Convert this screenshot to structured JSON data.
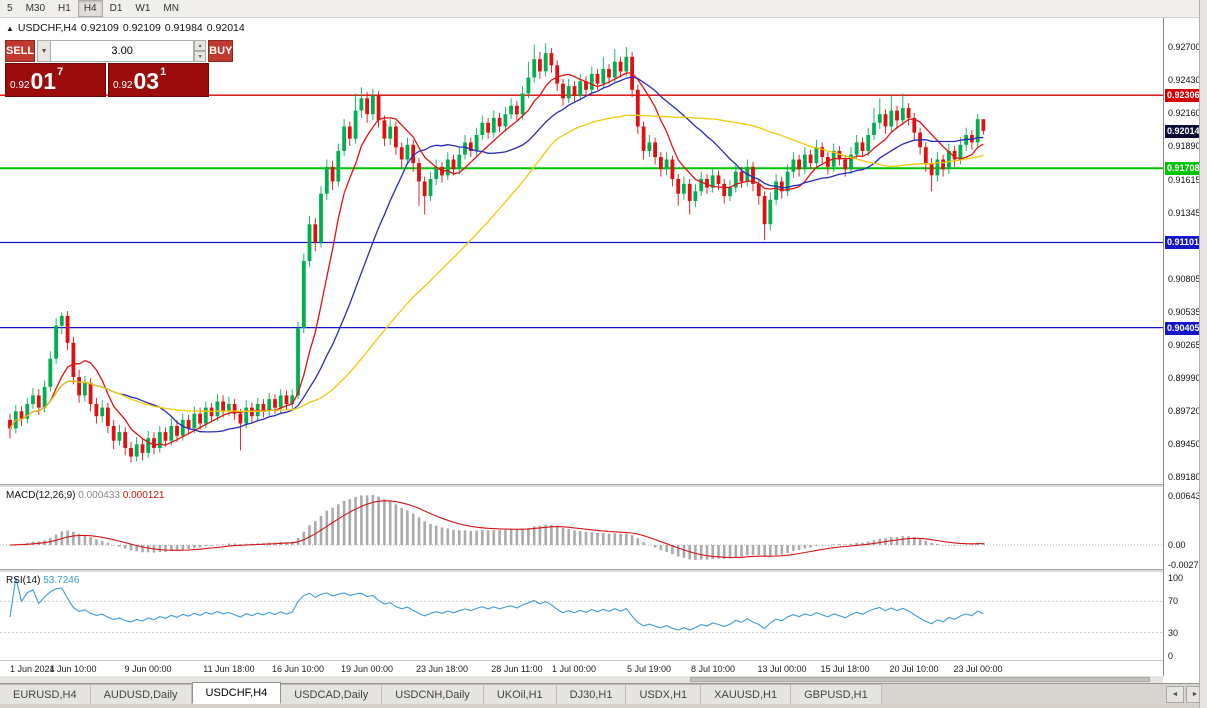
{
  "toolbar": {
    "timeframes": [
      {
        "label": "5",
        "active": false
      },
      {
        "label": "M30",
        "active": false
      },
      {
        "label": "H1",
        "active": false
      },
      {
        "label": "H4",
        "active": true
      },
      {
        "label": "D1",
        "active": false
      },
      {
        "label": "W1",
        "active": false
      },
      {
        "label": "MN",
        "active": false
      }
    ]
  },
  "chart": {
    "symbol_timeframe": "USDCHF,H4",
    "open": "0.92109",
    "high": "0.92109",
    "low": "0.91984",
    "close": "0.92014",
    "one_click": {
      "sell_label": "SELL",
      "buy_label": "BUY",
      "lot": "3.00",
      "bid": {
        "prefix": "0.92",
        "big": "01",
        "sup": "7"
      },
      "ask": {
        "prefix": "0.92",
        "big": "03",
        "sup": "1"
      }
    },
    "colors": {
      "bull": "#00B050",
      "bear": "#E01010",
      "background": "#ffffff"
    },
    "ma_lines": [
      {
        "period": 8,
        "color": "#E11212"
      },
      {
        "period": 20,
        "color": "#2A2ABB"
      },
      {
        "period": 45,
        "color": "#EFCA08"
      }
    ],
    "hlines": [
      {
        "label": "0.92306",
        "value": 0.92306,
        "color": "#D40000",
        "width": 1.3
      },
      {
        "label": "0.91708",
        "value": 0.91708,
        "color": "#00C400",
        "width": 2
      },
      {
        "label": "0.91101",
        "value": 0.91101,
        "color": "#1414C8",
        "width": 1.3
      },
      {
        "label": "0.90405",
        "value": 0.90405,
        "color": "#1414C8",
        "width": 1.3
      }
    ],
    "current_price": {
      "label": "0.92014",
      "value": 0.92014,
      "badge_color": "#0D0D38"
    },
    "price_axis": [
      "0.92700",
      "0.92430",
      "0.92160",
      "0.91890",
      "0.91615",
      "0.91345",
      "0.91075",
      "0.90805",
      "0.90535",
      "0.90265",
      "0.89990",
      "0.89720",
      "0.89450",
      "0.89180"
    ],
    "time_axis": [
      {
        "label": "1 Jun 2021",
        "i": 0
      },
      {
        "label": "4 Jun 10:00",
        "i": 11
      },
      {
        "label": "9 Jun 00:00",
        "i": 24
      },
      {
        "label": "11 Jun 18:00",
        "i": 38
      },
      {
        "label": "16 Jun 10:00",
        "i": 50
      },
      {
        "label": "19 Jun 00:00",
        "i": 62
      },
      {
        "label": "23 Jun 18:00",
        "i": 75
      },
      {
        "label": "28 Jun 11:00",
        "i": 88
      },
      {
        "label": "1 Jul 00:00",
        "i": 98
      },
      {
        "label": "5 Jul 19:00",
        "i": 111
      },
      {
        "label": "8 Jul 10:00",
        "i": 122
      },
      {
        "label": "13 Jul 00:00",
        "i": 134
      },
      {
        "label": "15 Jul 18:00",
        "i": 145
      },
      {
        "label": "20 Jul 10:00",
        "i": 157
      },
      {
        "label": "23 Jul 00:00",
        "i": 168
      }
    ],
    "candles": [
      [
        0.8965,
        0.897,
        0.895,
        0.8958
      ],
      [
        0.8958,
        0.8977,
        0.8954,
        0.8972
      ],
      [
        0.8972,
        0.8976,
        0.896,
        0.8966
      ],
      [
        0.8966,
        0.8983,
        0.8962,
        0.8978
      ],
      [
        0.8978,
        0.8991,
        0.8974,
        0.8985
      ],
      [
        0.8985,
        0.899,
        0.8969,
        0.8975
      ],
      [
        0.8975,
        0.8997,
        0.8971,
        0.8992
      ],
      [
        0.8992,
        0.9021,
        0.8988,
        0.9015
      ],
      [
        0.9015,
        0.9048,
        0.9011,
        0.9042
      ],
      [
        0.9042,
        0.9053,
        0.9035,
        0.905
      ],
      [
        0.905,
        0.9054,
        0.9022,
        0.9028
      ],
      [
        0.9028,
        0.9033,
        0.8994,
        0.9
      ],
      [
        0.9,
        0.9006,
        0.8979,
        0.8985
      ],
      [
        0.8985,
        0.9001,
        0.898,
        0.8995
      ],
      [
        0.8995,
        0.8999,
        0.8972,
        0.8978
      ],
      [
        0.8978,
        0.8983,
        0.8962,
        0.8968
      ],
      [
        0.8968,
        0.8981,
        0.8963,
        0.8975
      ],
      [
        0.8975,
        0.8979,
        0.8954,
        0.896
      ],
      [
        0.896,
        0.8965,
        0.8941,
        0.8948
      ],
      [
        0.8948,
        0.8961,
        0.8944,
        0.8955
      ],
      [
        0.8955,
        0.8959,
        0.8936,
        0.8942
      ],
      [
        0.8942,
        0.8947,
        0.893,
        0.8935
      ],
      [
        0.8935,
        0.8951,
        0.8931,
        0.8945
      ],
      [
        0.8945,
        0.895,
        0.8932,
        0.8938
      ],
      [
        0.8938,
        0.8956,
        0.8934,
        0.895
      ],
      [
        0.895,
        0.8955,
        0.8937,
        0.8942
      ],
      [
        0.8942,
        0.896,
        0.8938,
        0.8955
      ],
      [
        0.8955,
        0.8959,
        0.8943,
        0.8948
      ],
      [
        0.8948,
        0.8966,
        0.8944,
        0.896
      ],
      [
        0.896,
        0.8965,
        0.8947,
        0.8952
      ],
      [
        0.8952,
        0.897,
        0.8948,
        0.8965
      ],
      [
        0.8965,
        0.8969,
        0.8953,
        0.8958
      ],
      [
        0.8958,
        0.8976,
        0.8954,
        0.897
      ],
      [
        0.897,
        0.8975,
        0.8957,
        0.8962
      ],
      [
        0.8962,
        0.898,
        0.8958,
        0.8975
      ],
      [
        0.8975,
        0.8979,
        0.8963,
        0.8968
      ],
      [
        0.8968,
        0.8986,
        0.8964,
        0.898
      ],
      [
        0.898,
        0.8985,
        0.8967,
        0.8972
      ],
      [
        0.8972,
        0.8984,
        0.8968,
        0.8978
      ],
      [
        0.8978,
        0.8982,
        0.8965,
        0.897
      ],
      [
        0.897,
        0.8974,
        0.894,
        0.8962
      ],
      [
        0.8962,
        0.8981,
        0.8958,
        0.8975
      ],
      [
        0.8975,
        0.8979,
        0.8963,
        0.8968
      ],
      [
        0.8968,
        0.8983,
        0.8964,
        0.8978
      ],
      [
        0.8978,
        0.8982,
        0.8967,
        0.8972
      ],
      [
        0.8972,
        0.8987,
        0.8968,
        0.8982
      ],
      [
        0.8982,
        0.8986,
        0.897,
        0.8975
      ],
      [
        0.8975,
        0.899,
        0.8971,
        0.8985
      ],
      [
        0.8985,
        0.8989,
        0.8973,
        0.8978
      ],
      [
        0.8978,
        0.899,
        0.8974,
        0.8985
      ],
      [
        0.8985,
        0.9045,
        0.8982,
        0.904
      ],
      [
        0.904,
        0.9101,
        0.9036,
        0.9095
      ],
      [
        0.9095,
        0.9132,
        0.909,
        0.9125
      ],
      [
        0.9125,
        0.913,
        0.9103,
        0.911
      ],
      [
        0.911,
        0.9156,
        0.9106,
        0.915
      ],
      [
        0.915,
        0.9178,
        0.9145,
        0.9172
      ],
      [
        0.9172,
        0.9177,
        0.9153,
        0.916
      ],
      [
        0.916,
        0.9191,
        0.9156,
        0.9185
      ],
      [
        0.9185,
        0.9211,
        0.9181,
        0.9205
      ],
      [
        0.9205,
        0.9209,
        0.9189,
        0.9195
      ],
      [
        0.9195,
        0.9232,
        0.9191,
        0.9218
      ],
      [
        0.9218,
        0.9237,
        0.9212,
        0.9228
      ],
      [
        0.9228,
        0.9233,
        0.9208,
        0.9215
      ],
      [
        0.9215,
        0.9236,
        0.921,
        0.923
      ],
      [
        0.923,
        0.9234,
        0.9204,
        0.921
      ],
      [
        0.921,
        0.9214,
        0.9189,
        0.9195
      ],
      [
        0.9195,
        0.9211,
        0.919,
        0.9205
      ],
      [
        0.9205,
        0.9209,
        0.9182,
        0.9188
      ],
      [
        0.9188,
        0.9192,
        0.9171,
        0.9178
      ],
      [
        0.9178,
        0.9196,
        0.9174,
        0.919
      ],
      [
        0.919,
        0.9194,
        0.9168,
        0.9175
      ],
      [
        0.9175,
        0.9179,
        0.914,
        0.916
      ],
      [
        0.916,
        0.9164,
        0.9133,
        0.9148
      ],
      [
        0.9148,
        0.9168,
        0.9144,
        0.9162
      ],
      [
        0.9162,
        0.9178,
        0.9157,
        0.9172
      ],
      [
        0.9172,
        0.9176,
        0.9159,
        0.9165
      ],
      [
        0.9165,
        0.9184,
        0.9161,
        0.9178
      ],
      [
        0.9178,
        0.9182,
        0.9165,
        0.917
      ],
      [
        0.917,
        0.9188,
        0.9166,
        0.9182
      ],
      [
        0.9182,
        0.9198,
        0.9178,
        0.9192
      ],
      [
        0.9192,
        0.9196,
        0.918,
        0.9185
      ],
      [
        0.9185,
        0.9204,
        0.9181,
        0.9198
      ],
      [
        0.9198,
        0.9214,
        0.9194,
        0.9208
      ],
      [
        0.9208,
        0.9212,
        0.9195,
        0.92
      ],
      [
        0.92,
        0.9218,
        0.9196,
        0.9212
      ],
      [
        0.9212,
        0.9216,
        0.92,
        0.9205
      ],
      [
        0.9205,
        0.9221,
        0.9201,
        0.9215
      ],
      [
        0.9215,
        0.9228,
        0.9211,
        0.9222
      ],
      [
        0.9222,
        0.9226,
        0.921,
        0.9215
      ],
      [
        0.9215,
        0.9238,
        0.9211,
        0.9232
      ],
      [
        0.9232,
        0.9258,
        0.9228,
        0.9245
      ],
      [
        0.9245,
        0.9272,
        0.9241,
        0.926
      ],
      [
        0.926,
        0.9266,
        0.9244,
        0.925
      ],
      [
        0.925,
        0.9273,
        0.9246,
        0.9265
      ],
      [
        0.9265,
        0.9269,
        0.9249,
        0.9255
      ],
      [
        0.9255,
        0.9259,
        0.9234,
        0.924
      ],
      [
        0.924,
        0.9244,
        0.9222,
        0.9228
      ],
      [
        0.9228,
        0.9244,
        0.9224,
        0.9238
      ],
      [
        0.9238,
        0.9242,
        0.9225,
        0.923
      ],
      [
        0.923,
        0.9248,
        0.9226,
        0.9242
      ],
      [
        0.9242,
        0.9246,
        0.923,
        0.9235
      ],
      [
        0.9235,
        0.9254,
        0.9231,
        0.9248
      ],
      [
        0.9248,
        0.9252,
        0.9235,
        0.924
      ],
      [
        0.924,
        0.9262,
        0.9236,
        0.9252
      ],
      [
        0.9252,
        0.9256,
        0.924,
        0.9245
      ],
      [
        0.9245,
        0.9268,
        0.9241,
        0.9258
      ],
      [
        0.9258,
        0.9262,
        0.9245,
        0.925
      ],
      [
        0.925,
        0.927,
        0.9246,
        0.9262
      ],
      [
        0.9262,
        0.9266,
        0.9229,
        0.9235
      ],
      [
        0.9235,
        0.9239,
        0.9199,
        0.9205
      ],
      [
        0.9205,
        0.9209,
        0.9178,
        0.9185
      ],
      [
        0.9185,
        0.9198,
        0.918,
        0.9192
      ],
      [
        0.9192,
        0.9196,
        0.9174,
        0.918
      ],
      [
        0.918,
        0.9184,
        0.9164,
        0.917
      ],
      [
        0.917,
        0.9184,
        0.9165,
        0.9178
      ],
      [
        0.9178,
        0.9181,
        0.9156,
        0.9162
      ],
      [
        0.9162,
        0.9166,
        0.914,
        0.915
      ],
      [
        0.915,
        0.9164,
        0.9145,
        0.9158
      ],
      [
        0.9158,
        0.9162,
        0.9133,
        0.9144
      ],
      [
        0.9144,
        0.9158,
        0.9139,
        0.9152
      ],
      [
        0.9152,
        0.9168,
        0.9148,
        0.9162
      ],
      [
        0.9162,
        0.9166,
        0.915,
        0.9155
      ],
      [
        0.9155,
        0.9171,
        0.9151,
        0.9165
      ],
      [
        0.9165,
        0.9169,
        0.9153,
        0.9158
      ],
      [
        0.9158,
        0.9162,
        0.9142,
        0.9148
      ],
      [
        0.9148,
        0.9161,
        0.9144,
        0.9155
      ],
      [
        0.9155,
        0.9174,
        0.9151,
        0.9168
      ],
      [
        0.9168,
        0.9172,
        0.9155,
        0.916
      ],
      [
        0.916,
        0.9178,
        0.9156,
        0.9172
      ],
      [
        0.9172,
        0.9176,
        0.9152,
        0.9158
      ],
      [
        0.9158,
        0.9162,
        0.9141,
        0.9148
      ],
      [
        0.9148,
        0.9152,
        0.9112,
        0.9125
      ],
      [
        0.9125,
        0.9151,
        0.912,
        0.9145
      ],
      [
        0.9145,
        0.9166,
        0.9141,
        0.916
      ],
      [
        0.916,
        0.9164,
        0.9146,
        0.9152
      ],
      [
        0.9152,
        0.9174,
        0.9148,
        0.9168
      ],
      [
        0.9168,
        0.9184,
        0.9163,
        0.9178
      ],
      [
        0.9178,
        0.9182,
        0.9164,
        0.917
      ],
      [
        0.917,
        0.9188,
        0.9166,
        0.9182
      ],
      [
        0.9182,
        0.9186,
        0.917,
        0.9175
      ],
      [
        0.9175,
        0.9194,
        0.9171,
        0.9188
      ],
      [
        0.9188,
        0.9192,
        0.9175,
        0.918
      ],
      [
        0.918,
        0.9184,
        0.9166,
        0.9172
      ],
      [
        0.9172,
        0.9191,
        0.9168,
        0.9185
      ],
      [
        0.9185,
        0.9189,
        0.9173,
        0.9178
      ],
      [
        0.9178,
        0.9182,
        0.9164,
        0.917
      ],
      [
        0.917,
        0.9188,
        0.9166,
        0.9182
      ],
      [
        0.9182,
        0.9198,
        0.9178,
        0.9192
      ],
      [
        0.9192,
        0.9196,
        0.918,
        0.9185
      ],
      [
        0.9185,
        0.9204,
        0.9181,
        0.9198
      ],
      [
        0.9198,
        0.922,
        0.9194,
        0.9208
      ],
      [
        0.9208,
        0.9228,
        0.9203,
        0.9215
      ],
      [
        0.9215,
        0.9219,
        0.9199,
        0.9205
      ],
      [
        0.9205,
        0.923,
        0.9201,
        0.9218
      ],
      [
        0.9218,
        0.9222,
        0.9204,
        0.921
      ],
      [
        0.921,
        0.9232,
        0.9206,
        0.922
      ],
      [
        0.922,
        0.9224,
        0.9206,
        0.9212
      ],
      [
        0.9212,
        0.9216,
        0.9194,
        0.92
      ],
      [
        0.92,
        0.9204,
        0.9182,
        0.9188
      ],
      [
        0.9188,
        0.9192,
        0.9168,
        0.9175
      ],
      [
        0.9175,
        0.9179,
        0.9152,
        0.9165
      ],
      [
        0.9165,
        0.9184,
        0.916,
        0.9178
      ],
      [
        0.9178,
        0.9182,
        0.9164,
        0.917
      ],
      [
        0.917,
        0.9191,
        0.9166,
        0.9185
      ],
      [
        0.9185,
        0.9189,
        0.9172,
        0.9178
      ],
      [
        0.9178,
        0.9196,
        0.9174,
        0.919
      ],
      [
        0.919,
        0.9204,
        0.9185,
        0.9198
      ],
      [
        0.9198,
        0.9202,
        0.9186,
        0.9192
      ],
      [
        0.9192,
        0.9215,
        0.9188,
        0.9211
      ],
      [
        0.92109,
        0.92109,
        0.91984,
        0.92014
      ]
    ]
  },
  "macd": {
    "name": "MACD(12,26,9)",
    "value_main": "0.000433",
    "value_signal": "0.000121",
    "axis": [
      "0.006433",
      "0.00",
      "-0.002726"
    ],
    "histogram_color": "#ABABAB",
    "signal_color": "#D41414",
    "params": {
      "fast": 12,
      "slow": 26,
      "signal": 9
    }
  },
  "rsi": {
    "name": "RSI(14)",
    "value": "53.7246",
    "period": 14,
    "axis": [
      "100",
      "70",
      "30",
      "0"
    ],
    "levels": [
      70,
      30
    ],
    "line_color": "#3E9CD8"
  },
  "tabs": {
    "items": [
      {
        "label": "EURUSD,H4",
        "active": false
      },
      {
        "label": "AUDUSD,Daily",
        "active": false
      },
      {
        "label": "USDCHF,H4",
        "active": true
      },
      {
        "label": "USDCAD,Daily",
        "active": false
      },
      {
        "label": "USDCNH,Daily",
        "active": false
      },
      {
        "label": "UKOil,H1",
        "active": false
      },
      {
        "label": "DJ30,H1",
        "active": false
      },
      {
        "label": "USDX,H1",
        "active": false
      },
      {
        "label": "XAUUSD,H1",
        "active": false
      },
      {
        "label": "GBPUSD,H1",
        "active": false
      }
    ]
  }
}
